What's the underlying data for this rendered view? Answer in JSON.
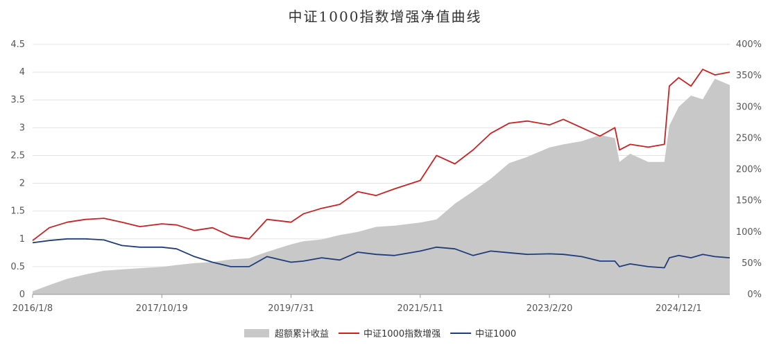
{
  "chart_data": {
    "type": "line",
    "title": "中证1000指数增强净值曲线",
    "left_axis": {
      "ylim": [
        0,
        4.5
      ],
      "ticks": [
        "0",
        "0.5",
        "1",
        "1.5",
        "2",
        "2.5",
        "3",
        "3.5",
        "4",
        "4.5"
      ]
    },
    "right_axis": {
      "ylim": [
        0,
        400
      ],
      "ticks": [
        "0%",
        "50%",
        "100%",
        "150%",
        "200%",
        "250%",
        "300%",
        "350%",
        "400%"
      ]
    },
    "x_ticks": [
      "2016/1/8",
      "2017/10/19",
      "2019/7/31",
      "2021/5/11",
      "2023/2/20",
      "2024/12/1"
    ],
    "x_range": [
      "2016/1/8",
      "2025/8/15"
    ],
    "grid": true,
    "legend_position": "bottom",
    "series": [
      {
        "name": "超额累计收益",
        "type": "area",
        "axis": "right",
        "color": "#c8c8c8",
        "x": [
          "2016/1/8",
          "2016/4/1",
          "2016/7/1",
          "2016/10/1",
          "2017/1/1",
          "2017/4/1",
          "2017/7/1",
          "2017/10/19",
          "2018/1/1",
          "2018/4/1",
          "2018/7/1",
          "2018/10/1",
          "2019/1/1",
          "2019/4/1",
          "2019/7/31",
          "2019/10/1",
          "2020/1/1",
          "2020/4/1",
          "2020/7/1",
          "2020/10/1",
          "2021/1/1",
          "2021/5/11",
          "2021/8/1",
          "2021/11/1",
          "2022/2/1",
          "2022/5/1",
          "2022/8/1",
          "2022/11/1",
          "2023/2/20",
          "2023/5/1",
          "2023/8/1",
          "2023/11/1",
          "2024/1/15",
          "2024/2/7",
          "2024/4/1",
          "2024/7/1",
          "2024/9/20",
          "2024/10/15",
          "2024/12/1",
          "2025/2/1",
          "2025/4/1",
          "2025/6/1",
          "2025/8/15"
        ],
        "values": [
          5,
          15,
          25,
          32,
          38,
          40,
          42,
          44,
          47,
          50,
          52,
          56,
          58,
          68,
          80,
          85,
          88,
          95,
          100,
          108,
          110,
          115,
          120,
          145,
          165,
          185,
          210,
          220,
          235,
          240,
          245,
          255,
          250,
          212,
          225,
          212,
          212,
          270,
          300,
          318,
          312,
          345,
          335
        ]
      },
      {
        "name": "中证1000指数增强",
        "type": "line",
        "axis": "left",
        "color": "#cc1f1f",
        "x": [
          "2016/1/8",
          "2016/4/1",
          "2016/7/1",
          "2016/10/1",
          "2017/1/1",
          "2017/4/1",
          "2017/7/1",
          "2017/10/19",
          "2018/1/1",
          "2018/4/1",
          "2018/7/1",
          "2018/10/1",
          "2019/1/1",
          "2019/4/1",
          "2019/7/31",
          "2019/10/1",
          "2020/1/1",
          "2020/4/1",
          "2020/7/1",
          "2020/10/1",
          "2021/1/1",
          "2021/5/11",
          "2021/8/1",
          "2021/11/1",
          "2022/2/1",
          "2022/5/1",
          "2022/8/1",
          "2022/11/1",
          "2023/2/20",
          "2023/5/1",
          "2023/8/1",
          "2023/11/1",
          "2024/1/15",
          "2024/2/7",
          "2024/4/1",
          "2024/7/1",
          "2024/9/20",
          "2024/10/15",
          "2024/12/1",
          "2025/2/1",
          "2025/4/1",
          "2025/6/1",
          "2025/8/15"
        ],
        "values": [
          0.97,
          1.2,
          1.3,
          1.35,
          1.37,
          1.3,
          1.22,
          1.27,
          1.25,
          1.15,
          1.2,
          1.05,
          1.0,
          1.35,
          1.3,
          1.45,
          1.55,
          1.62,
          1.85,
          1.78,
          1.9,
          2.05,
          2.5,
          2.35,
          2.6,
          2.9,
          3.08,
          3.12,
          3.05,
          3.15,
          3.0,
          2.85,
          3.0,
          2.6,
          2.7,
          2.65,
          2.7,
          3.75,
          3.9,
          3.75,
          4.05,
          3.95,
          4.0
        ]
      },
      {
        "name": "中证1000",
        "type": "line",
        "axis": "left",
        "color": "#1f3c7a",
        "x": [
          "2016/1/8",
          "2016/4/1",
          "2016/7/1",
          "2016/10/1",
          "2017/1/1",
          "2017/4/1",
          "2017/7/1",
          "2017/10/19",
          "2018/1/1",
          "2018/4/1",
          "2018/7/1",
          "2018/10/1",
          "2019/1/1",
          "2019/4/1",
          "2019/7/31",
          "2019/10/1",
          "2020/1/1",
          "2020/4/1",
          "2020/7/1",
          "2020/10/1",
          "2021/1/1",
          "2021/5/11",
          "2021/8/1",
          "2021/11/1",
          "2022/2/1",
          "2022/5/1",
          "2022/8/1",
          "2022/11/1",
          "2023/2/20",
          "2023/5/1",
          "2023/8/1",
          "2023/11/1",
          "2024/1/15",
          "2024/2/7",
          "2024/4/1",
          "2024/7/1",
          "2024/9/20",
          "2024/10/15",
          "2024/12/1",
          "2025/2/1",
          "2025/4/1",
          "2025/6/1",
          "2025/8/15"
        ],
        "values": [
          0.93,
          0.97,
          1.0,
          1.0,
          0.98,
          0.88,
          0.85,
          0.85,
          0.82,
          0.68,
          0.58,
          0.5,
          0.5,
          0.68,
          0.58,
          0.6,
          0.66,
          0.62,
          0.76,
          0.72,
          0.7,
          0.78,
          0.85,
          0.82,
          0.7,
          0.78,
          0.75,
          0.72,
          0.73,
          0.72,
          0.68,
          0.6,
          0.6,
          0.5,
          0.55,
          0.5,
          0.48,
          0.66,
          0.7,
          0.66,
          0.72,
          0.68,
          0.66
        ]
      }
    ]
  }
}
